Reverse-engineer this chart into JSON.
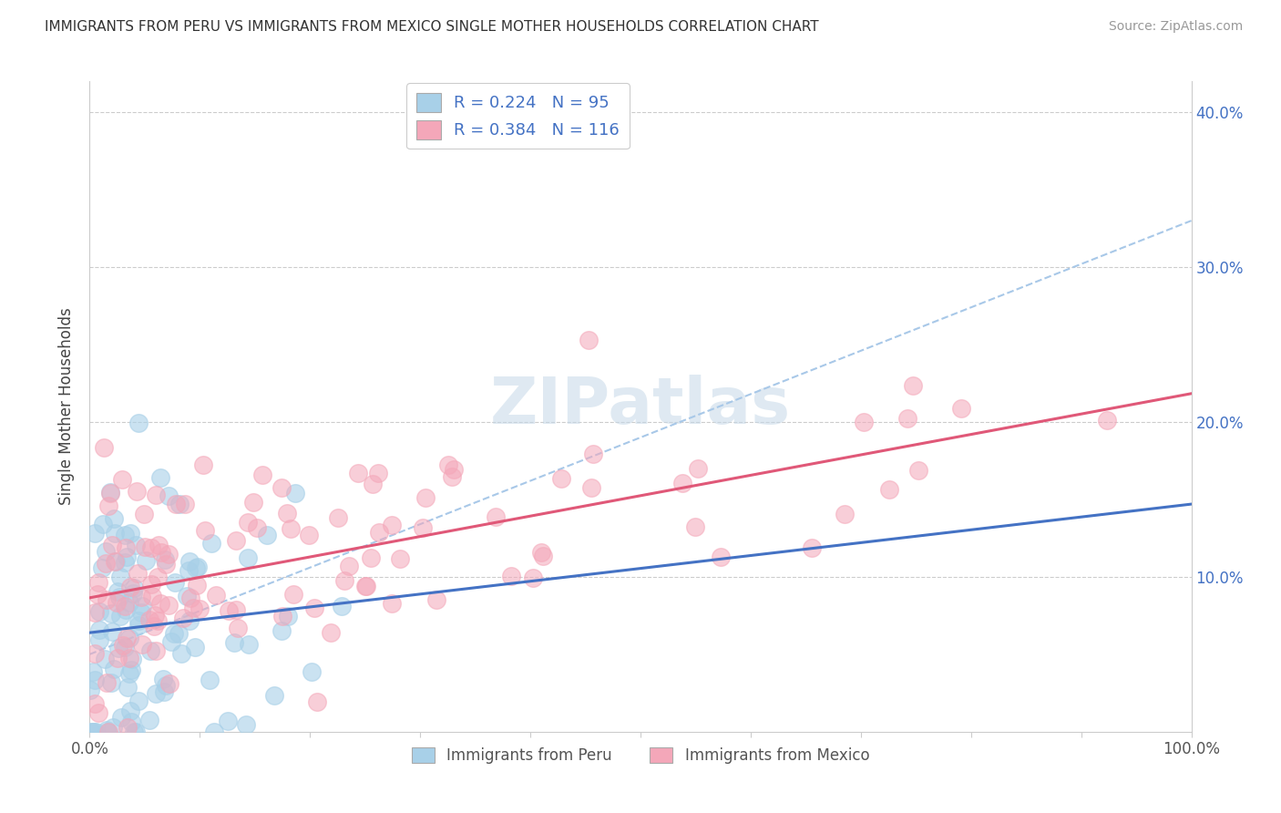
{
  "title": "IMMIGRANTS FROM PERU VS IMMIGRANTS FROM MEXICO SINGLE MOTHER HOUSEHOLDS CORRELATION CHART",
  "source": "Source: ZipAtlas.com",
  "ylabel": "Single Mother Households",
  "legend_label_1": "Immigrants from Peru",
  "legend_label_2": "Immigrants from Mexico",
  "R1": 0.224,
  "N1": 95,
  "R2": 0.384,
  "N2": 116,
  "color1": "#a8d0e8",
  "color2": "#f4a7b9",
  "trendline1_color": "#4472c4",
  "trendline2_color": "#e05878",
  "dashed_line_color": "#a8c8e8",
  "xlim": [
    0,
    100
  ],
  "ylim": [
    0,
    42
  ],
  "xtick_labels": [
    "0.0%",
    "",
    "",
    "",
    "",
    "",
    "",
    "",
    "",
    "",
    "100.0%"
  ],
  "ytick_labels_right": [
    "",
    "10.0%",
    "20.0%",
    "30.0%",
    "40.0%"
  ],
  "grid_color": "#cccccc",
  "watermark_color": "#c5d8e8",
  "background_color": "#ffffff",
  "peru_x_mean": 5,
  "peru_x_scale": 8,
  "peru_y_intercept": 4,
  "peru_y_slope": 0.18,
  "mexico_x_mean": 25,
  "mexico_x_scale": 25,
  "mexico_y_intercept": 7,
  "mexico_y_slope": 0.115,
  "dashed_y_start": 5,
  "dashed_y_end": 33
}
